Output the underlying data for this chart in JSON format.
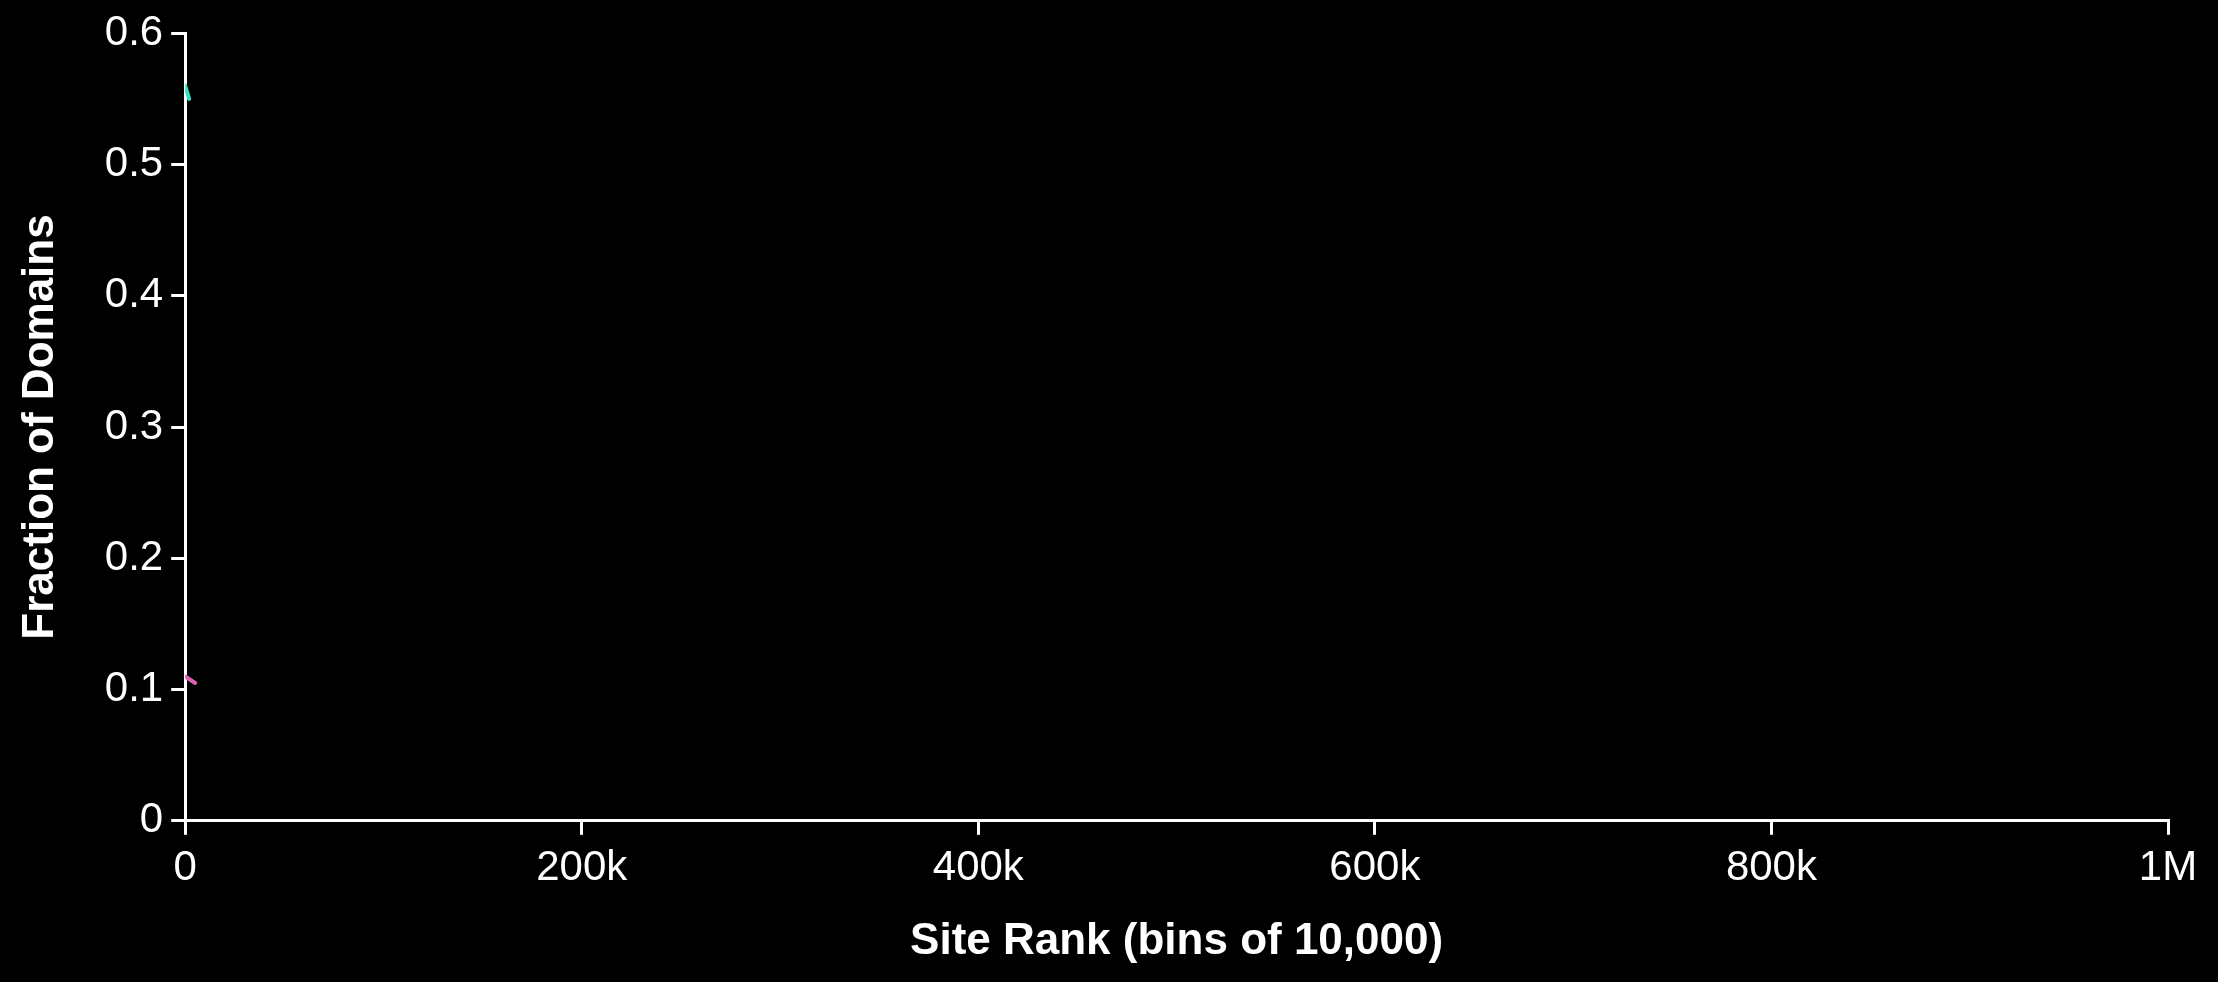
{
  "chart_data": {
    "type": "line",
    "xlabel": "Site Rank (bins of 10,000)",
    "ylabel": "Fraction of Domains",
    "xlim": [
      0,
      1000000
    ],
    "xticks": [
      {
        "value": 0,
        "label": "0"
      },
      {
        "value": 200000,
        "label": "200k"
      },
      {
        "value": 400000,
        "label": "400k"
      },
      {
        "value": 600000,
        "label": "600k"
      },
      {
        "value": 800000,
        "label": "800k"
      },
      {
        "value": 1000000,
        "label": "1M"
      }
    ],
    "ylim": [
      0,
      0.6
    ],
    "yticks": [
      0,
      0.1,
      0.2,
      0.3,
      0.4,
      0.5,
      0.6
    ],
    "grid": false,
    "legend": false,
    "marker": "none",
    "line_style": "solid",
    "series": [
      {
        "color": "#33e0c0",
        "x": [
          0,
          2000
        ],
        "values": [
          0.56,
          0.55
        ]
      },
      {
        "color": "#e060b0",
        "x": [
          0,
          5000
        ],
        "values": [
          0.11,
          0.105
        ]
      }
    ]
  }
}
